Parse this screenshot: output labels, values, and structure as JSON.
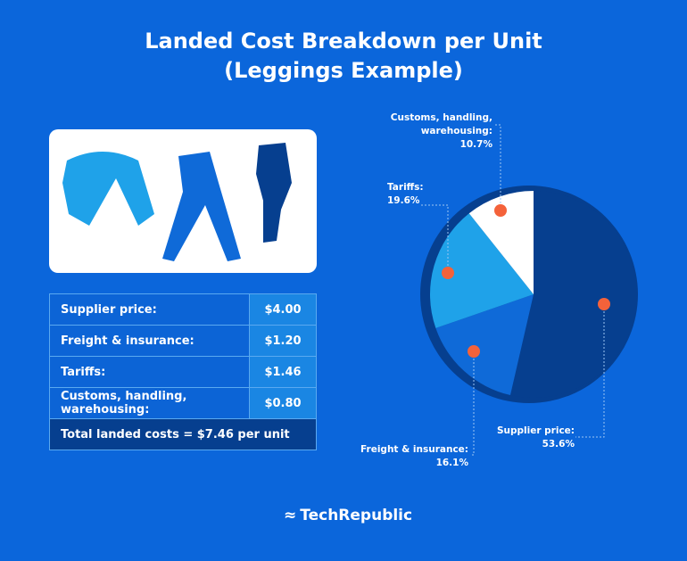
{
  "title_line1": "Landed Cost Breakdown per Unit",
  "title_line2": "(Leggings Example)",
  "table": {
    "rows": [
      {
        "label": "Supplier price:",
        "value": "$4.00"
      },
      {
        "label": "Freight & insurance:",
        "value": "$1.20"
      },
      {
        "label": "Tariffs:",
        "value": "$1.46"
      },
      {
        "label": "Customs, handling, warehousing:",
        "value": "$0.80"
      }
    ],
    "total": "Total landed costs = $7.46 per unit"
  },
  "chart_data": {
    "type": "pie",
    "title": "Landed Cost Breakdown per Unit (Leggings Example)",
    "slices": [
      {
        "label": "Supplier price:",
        "value": 53.6,
        "display": "53.6%",
        "color": "#063f8f"
      },
      {
        "label": "Freight & insurance:",
        "value": 16.1,
        "display": "16.1%",
        "color": "#0f6ad8"
      },
      {
        "label": "Tariffs:",
        "value": 19.6,
        "display": "19.6%",
        "color": "#1fa2e9"
      },
      {
        "label": "Customs, handling, warehousing:",
        "value": 10.7,
        "display": "10.7%",
        "color": "#ffffff"
      }
    ]
  },
  "colors": {
    "background": "#0b66db",
    "marker": "#f4623a"
  },
  "logo": "TechRepublic"
}
